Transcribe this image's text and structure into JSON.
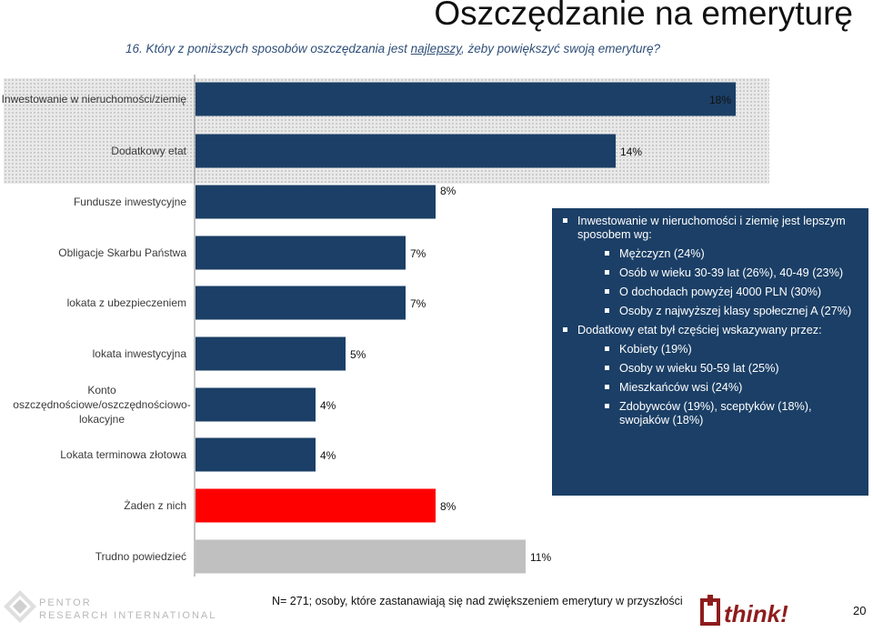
{
  "header": {
    "title": "Oszczędzanie na emeryturę",
    "question_pre": "16. Który z poniższych sposobów oszczędzania jest ",
    "question_emph": "najlepszy",
    "question_post": ", żeby powiększyć swoją emeryturę?"
  },
  "chart_data": {
    "type": "bar",
    "orientation": "horizontal",
    "unit": "%",
    "categories": [
      "Inwestowanie w nieruchomości/ziemię",
      "Dodatkowy etat",
      "Fundusze inwestycyjne",
      "Obligacje Skarbu Państwa",
      "lokata z ubezpieczeniem",
      "lokata inwestycyjna",
      "Konto oszczędnościowe/oszczędnościowo-lokacyjne",
      "Lokata terminowa złotowa",
      "Żaden z nich",
      "Trudno powiedzieć"
    ],
    "values": [
      18,
      14,
      8,
      7,
      7,
      5,
      4,
      4,
      8,
      11
    ],
    "value_labels": [
      "18%",
      "14%",
      "8%",
      "7%",
      "7%",
      "5%",
      "4%",
      "4%",
      "8%",
      "11%"
    ],
    "colors": [
      "#1b3f66",
      "#1b3f66",
      "#1b3f66",
      "#1b3f66",
      "#1b3f66",
      "#1b3f66",
      "#1b3f66",
      "#1b3f66",
      "#ff0000",
      "#c0c0c0"
    ],
    "highlighted": [
      0,
      1
    ],
    "xlim": [
      0,
      20
    ]
  },
  "infobox": {
    "items": [
      {
        "level": 0,
        "text": "Inwestowanie w nieruchomości i ziemię jest lepszym sposobem wg:"
      },
      {
        "level": 1,
        "text": "Mężczyzn (24%)"
      },
      {
        "level": 1,
        "text": "Osób w wieku 30-39 lat (26%), 40-49 (23%)"
      },
      {
        "level": 1,
        "text": "O dochodach powyżej 4000 PLN (30%)"
      },
      {
        "level": 1,
        "text": "Osoby z najwyższej klasy społecznej A (27%)"
      },
      {
        "level": 0,
        "text": "Dodatkowy etat był częściej wskazywany przez:"
      },
      {
        "level": 1,
        "text": "Kobiety (19%)"
      },
      {
        "level": 1,
        "text": "Osoby w wieku 50-59 lat (25%)"
      },
      {
        "level": 1,
        "text": "Mieszkańców wsi (24%)"
      },
      {
        "level": 1,
        "text": "Zdobywców (19%), sceptyków (18%), swojaków (18%)"
      }
    ]
  },
  "footer": {
    "note": "N= 271; osoby, które zastanawiają się nad zwiększeniem emerytury w przyszłości",
    "page_number": "20",
    "logo_left_line1": "PENTOR",
    "logo_left_line2": "RESEARCH INTERNATIONAL",
    "logo_right": "think!"
  },
  "colors": {
    "bar_primary": "#1b3f66",
    "bar_none": "#ff0000",
    "bar_dontknow": "#c0c0c0",
    "infobox_bg": "#1b3f66"
  }
}
